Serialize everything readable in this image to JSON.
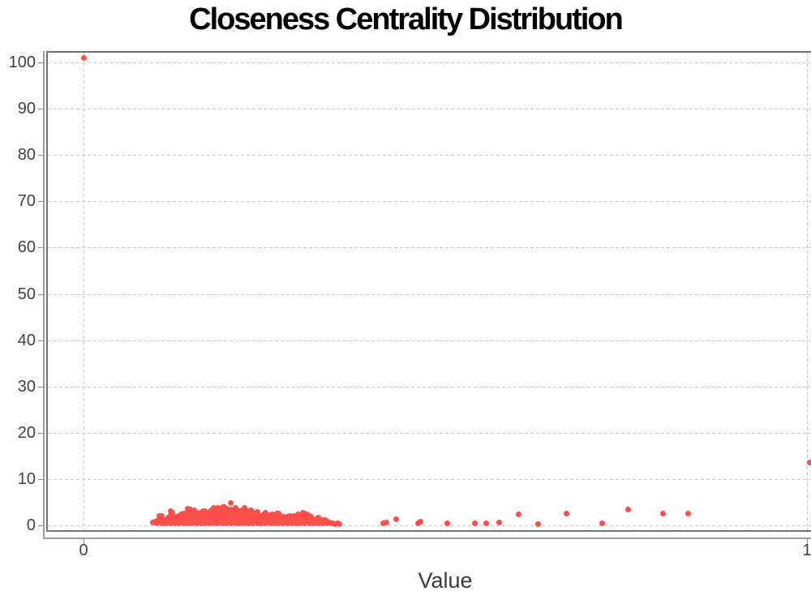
{
  "title": "Closeness Centrality Distribution",
  "colors": {
    "point": "#fa4f4b",
    "grid": "#cbcbcb",
    "axis": "#9c9c9c",
    "plot_border": "#757575",
    "tick": "#8a8a8a",
    "tick_text": "#414141",
    "title_text": "#000000",
    "background": "#ffffff"
  },
  "chart_data": {
    "type": "scatter",
    "title": "Closeness Centrality Distribution",
    "xlabel": "Value",
    "ylabel": "",
    "xlim": [
      0,
      1
    ],
    "ylim": [
      0,
      102
    ],
    "x_ticks": [
      0,
      1
    ],
    "x_tick_labels": [
      "0",
      "1"
    ],
    "y_ticks": [
      0,
      10,
      20,
      30,
      40,
      50,
      60,
      70,
      80,
      90,
      100
    ],
    "y_tick_labels": [
      "0",
      "10",
      "20",
      "30",
      "40",
      "50",
      "60",
      "70",
      "80",
      "90",
      "100"
    ],
    "grid": "dashed",
    "legend": "none",
    "notable_points": {
      "zero_value_spike": [
        0.001,
        101
      ],
      "max_value_point": [
        1.0,
        13.5
      ],
      "cluster_range_x": [
        0.095,
        0.36
      ],
      "cluster_count_range": [
        0,
        5
      ]
    },
    "points": [
      [
        0.096,
        0.6
      ],
      [
        0.099,
        0.8
      ],
      [
        0.102,
        0.5
      ],
      [
        0.102,
        1
      ],
      [
        0.105,
        1
      ],
      [
        0.105,
        2
      ],
      [
        0.108,
        0.5
      ],
      [
        0.108,
        1.4
      ],
      [
        0.108,
        2
      ],
      [
        0.111,
        0.6
      ],
      [
        0.111,
        1.2
      ],
      [
        0.114,
        0.5
      ],
      [
        0.114,
        1
      ],
      [
        0.117,
        1
      ],
      [
        0.117,
        1.6
      ],
      [
        0.12,
        0.5
      ],
      [
        0.12,
        1.2
      ],
      [
        0.12,
        2.2
      ],
      [
        0.12,
        3
      ],
      [
        0.123,
        0.6
      ],
      [
        0.123,
        1.5
      ],
      [
        0.123,
        2.8
      ],
      [
        0.126,
        0.5
      ],
      [
        0.126,
        1
      ],
      [
        0.126,
        1.8
      ],
      [
        0.129,
        0.7
      ],
      [
        0.129,
        1.5
      ],
      [
        0.132,
        0.5
      ],
      [
        0.132,
        1.2
      ],
      [
        0.132,
        2
      ],
      [
        0.135,
        0.6
      ],
      [
        0.135,
        1.4
      ],
      [
        0.135,
        2.3
      ],
      [
        0.138,
        0.5
      ],
      [
        0.138,
        1
      ],
      [
        0.138,
        2
      ],
      [
        0.138,
        2.6
      ],
      [
        0.141,
        0.8
      ],
      [
        0.141,
        1.6
      ],
      [
        0.141,
        2.4
      ],
      [
        0.144,
        0.5
      ],
      [
        0.144,
        1.3
      ],
      [
        0.144,
        2.2
      ],
      [
        0.144,
        3
      ],
      [
        0.144,
        3.6
      ],
      [
        0.147,
        0.6
      ],
      [
        0.147,
        1.5
      ],
      [
        0.147,
        2.5
      ],
      [
        0.147,
        3.4
      ],
      [
        0.15,
        0.5
      ],
      [
        0.15,
        1.2
      ],
      [
        0.15,
        2
      ],
      [
        0.15,
        3
      ],
      [
        0.153,
        0.7
      ],
      [
        0.153,
        1.6
      ],
      [
        0.153,
        2.6
      ],
      [
        0.153,
        3.3
      ],
      [
        0.156,
        0.5
      ],
      [
        0.156,
        1.1
      ],
      [
        0.156,
        2.1
      ],
      [
        0.156,
        2.8
      ],
      [
        0.159,
        0.6
      ],
      [
        0.159,
        1.4
      ],
      [
        0.159,
        2.3
      ],
      [
        0.162,
        0.5
      ],
      [
        0.162,
        1.2
      ],
      [
        0.162,
        2
      ],
      [
        0.162,
        2.7
      ],
      [
        0.165,
        0.8
      ],
      [
        0.165,
        1.7
      ],
      [
        0.165,
        2.5
      ],
      [
        0.165,
        3.1
      ],
      [
        0.168,
        0.5
      ],
      [
        0.168,
        1.3
      ],
      [
        0.168,
        2.2
      ],
      [
        0.168,
        3
      ],
      [
        0.171,
        0.6
      ],
      [
        0.171,
        1.5
      ],
      [
        0.171,
        2.4
      ],
      [
        0.174,
        0.5
      ],
      [
        0.174,
        1.1
      ],
      [
        0.174,
        2
      ],
      [
        0.174,
        2.9
      ],
      [
        0.177,
        0.7
      ],
      [
        0.177,
        1.6
      ],
      [
        0.177,
        2.6
      ],
      [
        0.177,
        3.3
      ],
      [
        0.18,
        0.5
      ],
      [
        0.18,
        1.2
      ],
      [
        0.18,
        2.2
      ],
      [
        0.18,
        3
      ],
      [
        0.18,
        3.7
      ],
      [
        0.183,
        0.6
      ],
      [
        0.183,
        1.4
      ],
      [
        0.183,
        2.4
      ],
      [
        0.183,
        3.2
      ],
      [
        0.186,
        0.5
      ],
      [
        0.186,
        1.3
      ],
      [
        0.186,
        2.1
      ],
      [
        0.186,
        3
      ],
      [
        0.186,
        3.8
      ],
      [
        0.189,
        0.8
      ],
      [
        0.189,
        1.6
      ],
      [
        0.189,
        2.5
      ],
      [
        0.189,
        3.4
      ],
      [
        0.192,
        0.5
      ],
      [
        0.192,
        1.2
      ],
      [
        0.192,
        2.2
      ],
      [
        0.192,
        3.1
      ],
      [
        0.192,
        3.9
      ],
      [
        0.195,
        0.6
      ],
      [
        0.195,
        1.5
      ],
      [
        0.195,
        2.4
      ],
      [
        0.195,
        3.3
      ],
      [
        0.195,
        4
      ],
      [
        0.198,
        0.5
      ],
      [
        0.198,
        1.1
      ],
      [
        0.198,
        2
      ],
      [
        0.198,
        3
      ],
      [
        0.198,
        3.6
      ],
      [
        0.201,
        0.7
      ],
      [
        0.201,
        1.4
      ],
      [
        0.201,
        2.3
      ],
      [
        0.201,
        3.2
      ],
      [
        0.203,
        4.8
      ],
      [
        0.204,
        0.5
      ],
      [
        0.204,
        1.3
      ],
      [
        0.204,
        2.2
      ],
      [
        0.204,
        3
      ],
      [
        0.204,
        3.5
      ],
      [
        0.207,
        0.6
      ],
      [
        0.207,
        1.5
      ],
      [
        0.207,
        2.5
      ],
      [
        0.207,
        3.3
      ],
      [
        0.21,
        0.5
      ],
      [
        0.21,
        1.2
      ],
      [
        0.21,
        2.1
      ],
      [
        0.21,
        3
      ],
      [
        0.21,
        3.8
      ],
      [
        0.213,
        0.8
      ],
      [
        0.213,
        1.6
      ],
      [
        0.213,
        2.4
      ],
      [
        0.213,
        3.2
      ],
      [
        0.216,
        0.5
      ],
      [
        0.216,
        1.3
      ],
      [
        0.216,
        2.3
      ],
      [
        0.216,
        3
      ],
      [
        0.219,
        0.6
      ],
      [
        0.219,
        1.4
      ],
      [
        0.219,
        2.2
      ],
      [
        0.219,
        3.3
      ],
      [
        0.222,
        0.5
      ],
      [
        0.222,
        1.1
      ],
      [
        0.222,
        2
      ],
      [
        0.222,
        3
      ],
      [
        0.222,
        3.7
      ],
      [
        0.225,
        0.7
      ],
      [
        0.225,
        1.5
      ],
      [
        0.225,
        2.5
      ],
      [
        0.225,
        3.2
      ],
      [
        0.228,
        0.5
      ],
      [
        0.228,
        1.2
      ],
      [
        0.228,
        2.2
      ],
      [
        0.228,
        2.9
      ],
      [
        0.231,
        0.6
      ],
      [
        0.231,
        1.4
      ],
      [
        0.231,
        2.3
      ],
      [
        0.231,
        3.2
      ],
      [
        0.234,
        0.5
      ],
      [
        0.234,
        1.1
      ],
      [
        0.234,
        2
      ],
      [
        0.234,
        2.8
      ],
      [
        0.237,
        0.8
      ],
      [
        0.237,
        1.6
      ],
      [
        0.237,
        2.4
      ],
      [
        0.24,
        0.5
      ],
      [
        0.24,
        1.2
      ],
      [
        0.24,
        2.1
      ],
      [
        0.24,
        2.9
      ],
      [
        0.243,
        0.6
      ],
      [
        0.243,
        1.4
      ],
      [
        0.243,
        2.2
      ],
      [
        0.246,
        0.5
      ],
      [
        0.246,
        1.1
      ],
      [
        0.246,
        1.9
      ],
      [
        0.249,
        0.7
      ],
      [
        0.249,
        1.5
      ],
      [
        0.249,
        2.3
      ],
      [
        0.252,
        0.5
      ],
      [
        0.252,
        1.2
      ],
      [
        0.252,
        2
      ],
      [
        0.252,
        2.8
      ],
      [
        0.255,
        0.6
      ],
      [
        0.255,
        1.3
      ],
      [
        0.255,
        2.2
      ],
      [
        0.258,
        0.5
      ],
      [
        0.258,
        1.1
      ],
      [
        0.258,
        1.8
      ],
      [
        0.261,
        0.8
      ],
      [
        0.261,
        1.5
      ],
      [
        0.261,
        2.3
      ],
      [
        0.264,
        0.5
      ],
      [
        0.264,
        1.2
      ],
      [
        0.264,
        2
      ],
      [
        0.267,
        0.6
      ],
      [
        0.267,
        1.4
      ],
      [
        0.267,
        2.5
      ],
      [
        0.27,
        0.5
      ],
      [
        0.27,
        1.1
      ],
      [
        0.27,
        2
      ],
      [
        0.27,
        2.6
      ],
      [
        0.273,
        0.7
      ],
      [
        0.273,
        1.5
      ],
      [
        0.273,
        2.1
      ],
      [
        0.276,
        0.5
      ],
      [
        0.276,
        1.2
      ],
      [
        0.276,
        1.9
      ],
      [
        0.279,
        0.6
      ],
      [
        0.279,
        1.3
      ],
      [
        0.282,
        0.5
      ],
      [
        0.282,
        1.1
      ],
      [
        0.282,
        1.8
      ],
      [
        0.285,
        0.8
      ],
      [
        0.285,
        1.6
      ],
      [
        0.285,
        2
      ],
      [
        0.288,
        0.5
      ],
      [
        0.288,
        1.2
      ],
      [
        0.291,
        0.6
      ],
      [
        0.291,
        1.4
      ],
      [
        0.291,
        2
      ],
      [
        0.294,
        0.5
      ],
      [
        0.294,
        1.1
      ],
      [
        0.294,
        1.7
      ],
      [
        0.297,
        0.7
      ],
      [
        0.297,
        1.4
      ],
      [
        0.297,
        2.3
      ],
      [
        0.3,
        0.5
      ],
      [
        0.3,
        1.2
      ],
      [
        0.3,
        1.9
      ],
      [
        0.303,
        0.6
      ],
      [
        0.303,
        1.3
      ],
      [
        0.303,
        2.2
      ],
      [
        0.303,
        2.8
      ],
      [
        0.306,
        0.5
      ],
      [
        0.306,
        1.1
      ],
      [
        0.306,
        2
      ],
      [
        0.306,
        2.6
      ],
      [
        0.309,
        0.8
      ],
      [
        0.309,
        1.5
      ],
      [
        0.309,
        2.4
      ],
      [
        0.312,
        0.5
      ],
      [
        0.312,
        1.2
      ],
      [
        0.312,
        2
      ],
      [
        0.315,
        0.6
      ],
      [
        0.315,
        1.3
      ],
      [
        0.315,
        1.8
      ],
      [
        0.318,
        0.5
      ],
      [
        0.318,
        1.1
      ],
      [
        0.321,
        0.7
      ],
      [
        0.321,
        1.4
      ],
      [
        0.324,
        0.5
      ],
      [
        0.324,
        1.2
      ],
      [
        0.324,
        1.6
      ],
      [
        0.327,
        0.6
      ],
      [
        0.327,
        1
      ],
      [
        0.33,
        0.5
      ],
      [
        0.33,
        1.1
      ],
      [
        0.333,
        0.7
      ],
      [
        0.333,
        1.2
      ],
      [
        0.336,
        0.5
      ],
      [
        0.336,
        0.9
      ],
      [
        0.339,
        0.6
      ],
      [
        0.342,
        0.4
      ],
      [
        0.345,
        0.5
      ],
      [
        0.348,
        0.3
      ],
      [
        0.351,
        0.4
      ],
      [
        0.354,
        0.3
      ],
      [
        0.414,
        0.5
      ],
      [
        0.419,
        0.6
      ],
      [
        0.432,
        1.4
      ],
      [
        0.462,
        0.4
      ],
      [
        0.466,
        0.8
      ],
      [
        0.503,
        0.4
      ],
      [
        0.541,
        0.4
      ],
      [
        0.557,
        0.4
      ],
      [
        0.574,
        0.6
      ],
      [
        0.601,
        2.4
      ],
      [
        0.628,
        0.3
      ],
      [
        0.668,
        2.5
      ],
      [
        0.717,
        0.4
      ],
      [
        0.753,
        3.4
      ],
      [
        0.801,
        2.5
      ],
      [
        0.836,
        2.5
      ],
      [
        0.001,
        101
      ],
      [
        1.004,
        13.5
      ]
    ]
  }
}
